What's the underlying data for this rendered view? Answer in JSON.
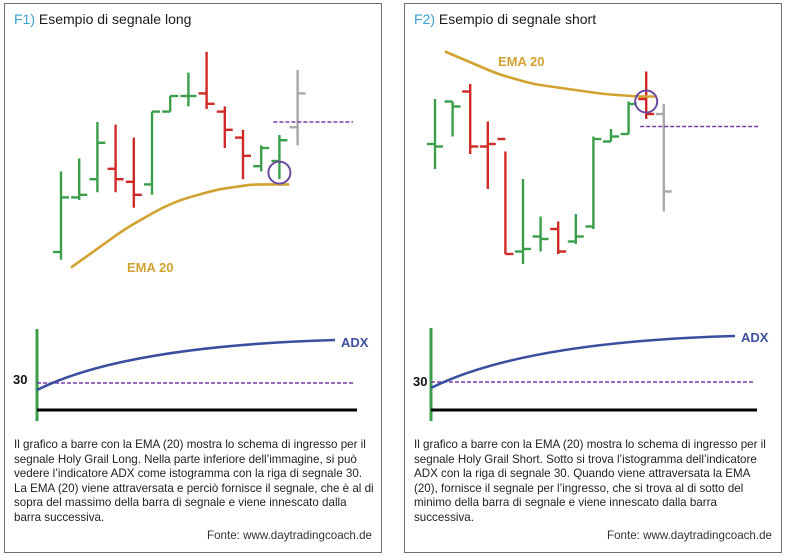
{
  "colors": {
    "up_bar": "#3a9e4a",
    "down_bar": "#d02a26",
    "future_bar": "#a9a9a9",
    "ema": "#d2a230",
    "adx": "#3b4fa0",
    "signal_level": "#7a3aa8",
    "circle": "#6a4aa0",
    "baseline": "#000000"
  },
  "panels": [
    {
      "id": "F1",
      "tag": "F1)",
      "title": "Esempio di segnale long",
      "ema_label": "EMA 20",
      "adx_label": "ADX",
      "level_label": "30",
      "caption": "Il grafico a barre con la EMA (20) mostra lo schema di ingresso per il segnale Holy Grail Long. Nella parte inferiore dell’immagine, si può vedere l’indicatore ADX come istogramma con la riga di segnale 30. La EMA (20) viene attraversata e perciò fornisce il segnale, che è al di sopra del massimo della barra di segnale e viene innescato dalla barra successiva.",
      "source": "Fonte: www.daytradingcoach.de"
    },
    {
      "id": "F2",
      "tag": "F2)",
      "title": "Esempio di segnale short",
      "ema_label": "EMA 20",
      "adx_label": "ADX",
      "level_label": "30",
      "caption": "Il grafico a barre con la EMA (20) mostra lo schema di ingresso per il segnale Holy Grail Short. Sotto si trova l’istogramma dell’indicatore ADX con la riga di segnale 30. Quando viene attraversata la EMA (20), fornisce il segnale per l’ingresso, che si trova al di sotto del minimo della barra di segnale e viene innescato dalla barra successiva.",
      "source": "Fonte: www.daytradingcoach.de"
    }
  ],
  "chart_data": [
    {
      "type": "bar",
      "title": "Esempio di segnale long",
      "ohlc_bars": [
        {
          "h": 51,
          "l": 17,
          "o": 20,
          "c": 41,
          "color": "up"
        },
        {
          "h": 56,
          "l": 40,
          "o": 41,
          "c": 42,
          "color": "up"
        },
        {
          "h": 70,
          "l": 43,
          "o": 48,
          "c": 62,
          "color": "up"
        },
        {
          "h": 69,
          "l": 43,
          "o": 52,
          "c": 48,
          "color": "down"
        },
        {
          "h": 64,
          "l": 37,
          "o": 47,
          "c": 42,
          "color": "down"
        },
        {
          "h": 74,
          "l": 42,
          "o": 46,
          "c": 74,
          "color": "up"
        },
        {
          "h": 80,
          "l": 74,
          "o": 74,
          "c": 80,
          "color": "up"
        },
        {
          "h": 89,
          "l": 76,
          "o": 80,
          "c": 80,
          "color": "up"
        },
        {
          "h": 97,
          "l": 75,
          "o": 81,
          "c": 77,
          "color": "down"
        },
        {
          "h": 76,
          "l": 60,
          "o": 74,
          "c": 67,
          "color": "down"
        },
        {
          "h": 67,
          "l": 48,
          "o": 64,
          "c": 57,
          "color": "down"
        },
        {
          "h": 61,
          "l": 51,
          "o": 53,
          "c": 60,
          "color": "up"
        },
        {
          "h": 65,
          "l": 48,
          "o": 55,
          "c": 63,
          "color": "up"
        },
        {
          "h": 90,
          "l": 61,
          "o": 68,
          "c": 81,
          "color": "future"
        }
      ],
      "ema": [
        14,
        19,
        24,
        29,
        33,
        37,
        40,
        42,
        44,
        45,
        46,
        46,
        46
      ],
      "signal_level": 70,
      "signal_bar": 12,
      "adx": [
        0,
        8,
        18,
        28,
        38,
        46,
        53,
        59,
        64,
        68,
        72,
        75,
        77
      ],
      "adx_signal": 30
    },
    {
      "type": "bar",
      "title": "Esempio di segnale short",
      "ohlc_bars": [
        {
          "h": 78,
          "l": 50,
          "o": 60,
          "c": 59,
          "color": "up"
        },
        {
          "h": 77,
          "l": 63,
          "o": 77,
          "c": 75,
          "color": "up"
        },
        {
          "h": 84,
          "l": 56,
          "o": 81,
          "c": 59,
          "color": "down"
        },
        {
          "h": 69,
          "l": 42,
          "o": 59,
          "c": 60,
          "color": "down"
        },
        {
          "h": 57,
          "l": 16,
          "o": 62,
          "c": 16,
          "color": "down"
        },
        {
          "h": 46,
          "l": 12,
          "o": 17,
          "c": 18,
          "color": "up"
        },
        {
          "h": 31,
          "l": 17,
          "o": 23,
          "c": 22,
          "color": "up"
        },
        {
          "h": 29,
          "l": 16,
          "o": 26,
          "c": 17,
          "color": "down"
        },
        {
          "h": 32,
          "l": 20,
          "o": 21,
          "c": 23,
          "color": "up"
        },
        {
          "h": 63,
          "l": 26,
          "o": 27,
          "c": 62,
          "color": "up"
        },
        {
          "h": 66,
          "l": 61,
          "o": 61,
          "c": 63,
          "color": "up"
        },
        {
          "h": 77,
          "l": 64,
          "o": 64,
          "c": 76,
          "color": "up"
        },
        {
          "h": 89,
          "l": 70,
          "o": 78,
          "c": 72,
          "color": "down"
        },
        {
          "h": 76,
          "l": 33,
          "o": 72,
          "c": 41,
          "color": "future"
        }
      ],
      "ema": [
        97,
        94,
        91,
        88,
        86,
        84,
        83,
        82,
        81,
        80,
        79.5,
        79,
        79
      ],
      "signal_level": 67,
      "signal_bar": 12,
      "adx": [
        0,
        8,
        18,
        28,
        38,
        46,
        53,
        59,
        64,
        68,
        72,
        75,
        77
      ],
      "adx_signal": 30
    }
  ]
}
